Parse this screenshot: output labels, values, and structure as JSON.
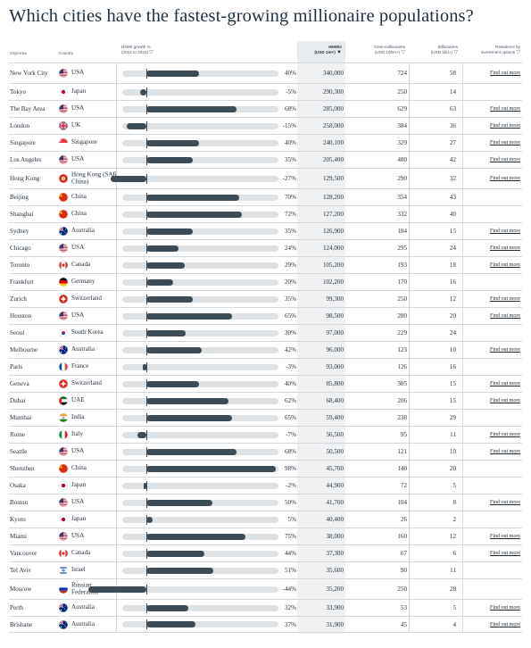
{
  "title": "Which cities have the fastest-growing millionaire populations?",
  "headers": {
    "city": "City/Area",
    "country": "Country",
    "growth": "HNWI growth %",
    "growth_sub": "(2012 to 2022)",
    "hnwi": "HNWIs",
    "hnwi_sub": "(USD 1m+)",
    "centi": "Centi-millionaires",
    "centi_sub": "(USD 100m+)",
    "bill": "Billionaires",
    "bill_sub": "(USD 1bn+)",
    "res": "Residence by",
    "res_sub": "investment options"
  },
  "link_text": "Find out more",
  "accent_colors": {
    "bar": "#3c4c57",
    "track": "#dfe2e5",
    "hnwi_band": "#eef0f2"
  },
  "rows": [
    {
      "city": "New York City",
      "country": "USA",
      "flag": "usa",
      "growth": 40,
      "growth_label": "40%",
      "hnwi": "340,000",
      "centi": "724",
      "bill": "58",
      "link": true
    },
    {
      "city": "Tokyo",
      "country": "Japan",
      "flag": "japan",
      "growth": -5,
      "growth_label": "-5%",
      "hnwi": "290,300",
      "centi": "250",
      "bill": "14",
      "link": false
    },
    {
      "city": "The Bay Area",
      "country": "USA",
      "flag": "usa",
      "growth": 68,
      "growth_label": "68%",
      "hnwi": "285,000",
      "centi": "629",
      "bill": "63",
      "link": true
    },
    {
      "city": "London",
      "country": "UK",
      "flag": "uk",
      "growth": -15,
      "growth_label": "-15%",
      "hnwi": "258,000",
      "centi": "384",
      "bill": "36",
      "link": true
    },
    {
      "city": "Singapore",
      "country": "Singapore",
      "flag": "singapore",
      "growth": 40,
      "growth_label": "40%",
      "hnwi": "240,100",
      "centi": "329",
      "bill": "27",
      "link": true
    },
    {
      "city": "Los Angeles",
      "country": "USA",
      "flag": "usa",
      "growth": 35,
      "growth_label": "35%",
      "hnwi": "205,400",
      "centi": "480",
      "bill": "42",
      "link": true
    },
    {
      "city": "Hong Kong",
      "country": "Hong Kong (SAR China)",
      "flag": "hongkong",
      "growth": -27,
      "growth_label": "-27%",
      "hnwi": "129,500",
      "centi": "290",
      "bill": "32",
      "link": true
    },
    {
      "city": "Beijing",
      "country": "China",
      "flag": "china",
      "growth": 70,
      "growth_label": "70%",
      "hnwi": "128,200",
      "centi": "354",
      "bill": "43",
      "link": false
    },
    {
      "city": "Shanghai",
      "country": "China",
      "flag": "china",
      "growth": 72,
      "growth_label": "72%",
      "hnwi": "127,200",
      "centi": "332",
      "bill": "40",
      "link": false
    },
    {
      "city": "Sydney",
      "country": "Australia",
      "flag": "australia",
      "growth": 35,
      "growth_label": "35%",
      "hnwi": "126,900",
      "centi": "184",
      "bill": "15",
      "link": true
    },
    {
      "city": "Chicago",
      "country": "USA",
      "flag": "usa",
      "growth": 24,
      "growth_label": "24%",
      "hnwi": "124,000",
      "centi": "295",
      "bill": "24",
      "link": true
    },
    {
      "city": "Toronto",
      "country": "Canada",
      "flag": "canada",
      "growth": 29,
      "growth_label": "29%",
      "hnwi": "105,200",
      "centi": "193",
      "bill": "18",
      "link": true
    },
    {
      "city": "Frankfurt",
      "country": "Germany",
      "flag": "germany",
      "growth": 20,
      "growth_label": "20%",
      "hnwi": "102,200",
      "centi": "170",
      "bill": "16",
      "link": false
    },
    {
      "city": "Zurich",
      "country": "Switzerland",
      "flag": "switzerland",
      "growth": 35,
      "growth_label": "35%",
      "hnwi": "99,300",
      "centi": "250",
      "bill": "12",
      "link": true
    },
    {
      "city": "Houston",
      "country": "USA",
      "flag": "usa",
      "growth": 65,
      "growth_label": "65%",
      "hnwi": "98,500",
      "centi": "280",
      "bill": "20",
      "link": true
    },
    {
      "city": "Seoul",
      "country": "South Korea",
      "flag": "korea",
      "growth": 30,
      "growth_label": "30%",
      "hnwi": "97,000",
      "centi": "229",
      "bill": "24",
      "link": false
    },
    {
      "city": "Melbourne",
      "country": "Australia",
      "flag": "australia",
      "growth": 42,
      "growth_label": "42%",
      "hnwi": "96,000",
      "centi": "123",
      "bill": "10",
      "link": true
    },
    {
      "city": "Paris",
      "country": "France",
      "flag": "france",
      "growth": -3,
      "growth_label": "-3%",
      "hnwi": "93,000",
      "centi": "126",
      "bill": "16",
      "link": false
    },
    {
      "city": "Geneva",
      "country": "Switzerland",
      "flag": "switzerland",
      "growth": 40,
      "growth_label": "40%",
      "hnwi": "85,800",
      "centi": "305",
      "bill": "15",
      "link": true
    },
    {
      "city": "Dubai",
      "country": "UAE",
      "flag": "uae",
      "growth": 62,
      "growth_label": "62%",
      "hnwi": "68,400",
      "centi": "206",
      "bill": "15",
      "link": true
    },
    {
      "city": "Mumbai",
      "country": "India",
      "flag": "india",
      "growth": 65,
      "growth_label": "65%",
      "hnwi": "59,400",
      "centi": "238",
      "bill": "29",
      "link": false
    },
    {
      "city": "Rome",
      "country": "Italy",
      "flag": "italy",
      "growth": -7,
      "growth_label": "-7%",
      "hnwi": "56,500",
      "centi": "95",
      "bill": "11",
      "link": true
    },
    {
      "city": "Seattle",
      "country": "USA",
      "flag": "usa",
      "growth": 68,
      "growth_label": "68%",
      "hnwi": "50,500",
      "centi": "121",
      "bill": "10",
      "link": true
    },
    {
      "city": "Shenzhen",
      "country": "China",
      "flag": "china",
      "growth": 98,
      "growth_label": "98%",
      "hnwi": "45,700",
      "centi": "140",
      "bill": "20",
      "link": false
    },
    {
      "city": "Osaka",
      "country": "Japan",
      "flag": "japan",
      "growth": -2,
      "growth_label": "-2%",
      "hnwi": "44,900",
      "centi": "72",
      "bill": "5",
      "link": false
    },
    {
      "city": "Boston",
      "country": "USA",
      "flag": "usa",
      "growth": 50,
      "growth_label": "50%",
      "hnwi": "41,700",
      "centi": "104",
      "bill": "8",
      "link": true
    },
    {
      "city": "Kyoto",
      "country": "Japan",
      "flag": "japan",
      "growth": 5,
      "growth_label": "5%",
      "hnwi": "40,400",
      "centi": "26",
      "bill": "2",
      "link": false
    },
    {
      "city": "Miami",
      "country": "USA",
      "flag": "usa",
      "growth": 75,
      "growth_label": "75%",
      "hnwi": "38,000",
      "centi": "160",
      "bill": "12",
      "link": true
    },
    {
      "city": "Vancouver",
      "country": "Canada",
      "flag": "canada",
      "growth": 44,
      "growth_label": "44%",
      "hnwi": "37,300",
      "centi": "67",
      "bill": "6",
      "link": true
    },
    {
      "city": "Tel Aviv",
      "country": "Israel",
      "flag": "israel",
      "growth": 51,
      "growth_label": "51%",
      "hnwi": "35,600",
      "centi": "90",
      "bill": "11",
      "link": false
    },
    {
      "city": "Moscow",
      "country": "Russian Federation",
      "flag": "russia",
      "growth": -44,
      "growth_label": "-44%",
      "hnwi": "35,200",
      "centi": "250",
      "bill": "28",
      "link": false
    },
    {
      "city": "Perth",
      "country": "Australia",
      "flag": "australia",
      "growth": 32,
      "growth_label": "32%",
      "hnwi": "33,900",
      "centi": "53",
      "bill": "5",
      "link": true
    },
    {
      "city": "Brisbane",
      "country": "Australia",
      "flag": "australia",
      "growth": 37,
      "growth_label": "37%",
      "hnwi": "31,900",
      "centi": "45",
      "bill": "4",
      "link": true
    }
  ]
}
